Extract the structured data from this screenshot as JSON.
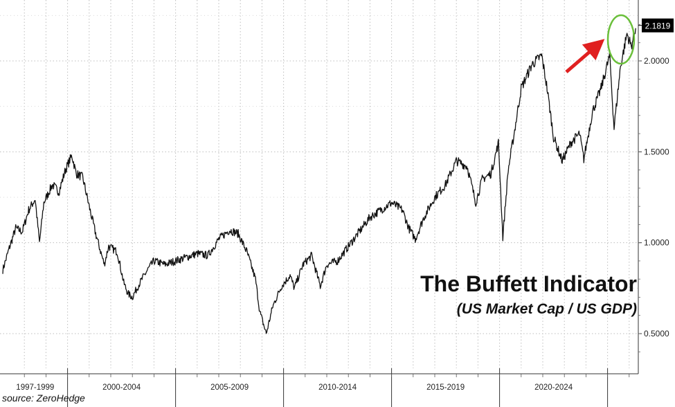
{
  "chart_data": {
    "type": "line",
    "title": "The Buffett Indicator",
    "subtitle": "(US Market Cap / US GDP)",
    "source": "source: ZeroHedge",
    "y_ticks": [
      "0.5000",
      "1.0000",
      "1.5000",
      "2.0000"
    ],
    "ylim": [
      0.35,
      2.35
    ],
    "x_periods": [
      "1997-1999",
      "2000-2004",
      "2005-2009",
      "2010-2014",
      "2015-2019",
      "2020-2024"
    ],
    "last_value_label": "2.1819",
    "accent_colors": {
      "line": "#111111",
      "arrow": "#e02020",
      "circle": "#6abf3a",
      "badge": "#000000"
    },
    "grid": true,
    "series": [
      {
        "values_by_year": [
          {
            "x": 1997.0,
            "y": 0.85
          },
          {
            "x": 1997.3,
            "y": 0.97
          },
          {
            "x": 1997.6,
            "y": 1.08
          },
          {
            "x": 1997.9,
            "y": 1.06
          },
          {
            "x": 1998.2,
            "y": 1.18
          },
          {
            "x": 1998.5,
            "y": 1.24
          },
          {
            "x": 1998.7,
            "y": 1.0
          },
          {
            "x": 1998.9,
            "y": 1.22
          },
          {
            "x": 1999.3,
            "y": 1.32
          },
          {
            "x": 1999.6,
            "y": 1.28
          },
          {
            "x": 1999.9,
            "y": 1.4
          },
          {
            "x": 2000.2,
            "y": 1.48
          },
          {
            "x": 2000.4,
            "y": 1.38
          },
          {
            "x": 2000.7,
            "y": 1.36
          },
          {
            "x": 2001.0,
            "y": 1.2
          },
          {
            "x": 2001.3,
            "y": 1.05
          },
          {
            "x": 2001.7,
            "y": 0.88
          },
          {
            "x": 2001.9,
            "y": 0.98
          },
          {
            "x": 2002.3,
            "y": 0.95
          },
          {
            "x": 2002.6,
            "y": 0.78
          },
          {
            "x": 2002.8,
            "y": 0.72
          },
          {
            "x": 2003.0,
            "y": 0.7
          },
          {
            "x": 2003.3,
            "y": 0.77
          },
          {
            "x": 2003.7,
            "y": 0.85
          },
          {
            "x": 2004.0,
            "y": 0.9
          },
          {
            "x": 2004.5,
            "y": 0.88
          },
          {
            "x": 2005.0,
            "y": 0.9
          },
          {
            "x": 2005.5,
            "y": 0.92
          },
          {
            "x": 2006.0,
            "y": 0.94
          },
          {
            "x": 2006.5,
            "y": 0.93
          },
          {
            "x": 2007.0,
            "y": 1.02
          },
          {
            "x": 2007.5,
            "y": 1.07
          },
          {
            "x": 2007.9,
            "y": 1.05
          },
          {
            "x": 2008.3,
            "y": 0.95
          },
          {
            "x": 2008.7,
            "y": 0.8
          },
          {
            "x": 2008.9,
            "y": 0.62
          },
          {
            "x": 2009.2,
            "y": 0.5
          },
          {
            "x": 2009.5,
            "y": 0.65
          },
          {
            "x": 2009.9,
            "y": 0.76
          },
          {
            "x": 2010.3,
            "y": 0.82
          },
          {
            "x": 2010.5,
            "y": 0.75
          },
          {
            "x": 2010.9,
            "y": 0.88
          },
          {
            "x": 2011.3,
            "y": 0.93
          },
          {
            "x": 2011.7,
            "y": 0.76
          },
          {
            "x": 2012.0,
            "y": 0.88
          },
          {
            "x": 2012.5,
            "y": 0.9
          },
          {
            "x": 2013.0,
            "y": 0.98
          },
          {
            "x": 2013.5,
            "y": 1.06
          },
          {
            "x": 2014.0,
            "y": 1.14
          },
          {
            "x": 2014.5,
            "y": 1.18
          },
          {
            "x": 2015.0,
            "y": 1.22
          },
          {
            "x": 2015.5,
            "y": 1.18
          },
          {
            "x": 2015.8,
            "y": 1.08
          },
          {
            "x": 2016.1,
            "y": 1.02
          },
          {
            "x": 2016.5,
            "y": 1.14
          },
          {
            "x": 2017.0,
            "y": 1.25
          },
          {
            "x": 2017.5,
            "y": 1.32
          },
          {
            "x": 2018.0,
            "y": 1.45
          },
          {
            "x": 2018.5,
            "y": 1.42
          },
          {
            "x": 2018.9,
            "y": 1.22
          },
          {
            "x": 2019.2,
            "y": 1.35
          },
          {
            "x": 2019.6,
            "y": 1.38
          },
          {
            "x": 2019.95,
            "y": 1.55
          },
          {
            "x": 2020.15,
            "y": 1.03
          },
          {
            "x": 2020.4,
            "y": 1.4
          },
          {
            "x": 2020.7,
            "y": 1.62
          },
          {
            "x": 2021.0,
            "y": 1.85
          },
          {
            "x": 2021.5,
            "y": 1.98
          },
          {
            "x": 2021.95,
            "y": 2.03
          },
          {
            "x": 2022.2,
            "y": 1.85
          },
          {
            "x": 2022.5,
            "y": 1.58
          },
          {
            "x": 2022.9,
            "y": 1.45
          },
          {
            "x": 2023.3,
            "y": 1.55
          },
          {
            "x": 2023.7,
            "y": 1.6
          },
          {
            "x": 2023.9,
            "y": 1.46
          },
          {
            "x": 2024.3,
            "y": 1.72
          },
          {
            "x": 2024.7,
            "y": 1.85
          },
          {
            "x": 2025.1,
            "y": 2.03
          },
          {
            "x": 2025.3,
            "y": 1.63
          },
          {
            "x": 2025.6,
            "y": 1.97
          },
          {
            "x": 2025.9,
            "y": 2.15
          },
          {
            "x": 2026.1,
            "y": 2.08
          },
          {
            "x": 2026.3,
            "y": 2.18
          }
        ]
      }
    ]
  }
}
